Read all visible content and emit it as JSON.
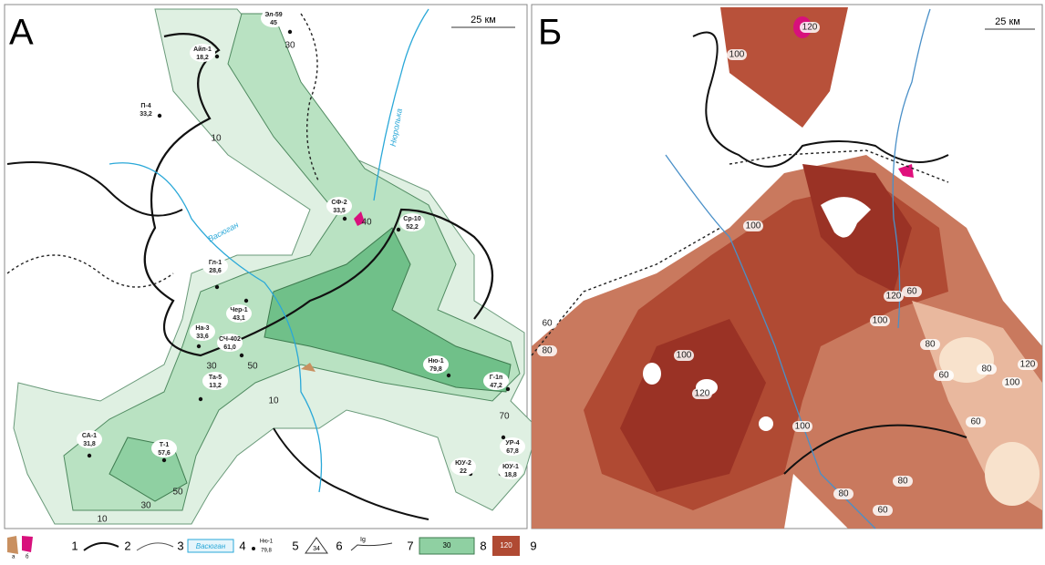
{
  "panel_a": {
    "letter": "А",
    "scale": "25 км",
    "rivers": [
      "Васюган",
      "Нюролька"
    ],
    "wells": [
      {
        "name": "Эл-59",
        "value": "45"
      },
      {
        "name": "Айп-1",
        "value": "18,2"
      },
      {
        "name": "П-4",
        "value": "33,2"
      },
      {
        "name": "СФ-2",
        "value": "33,5"
      },
      {
        "name": "Ср-10",
        "value": "52,2"
      },
      {
        "name": "Гл-1",
        "value": "28,6"
      },
      {
        "name": "Чер-1",
        "value": "43,1"
      },
      {
        "name": "На-3",
        "value": "33,6"
      },
      {
        "name": "СЧ-402",
        "value": "61,0"
      },
      {
        "name": "Ню-1",
        "value": "79,8"
      },
      {
        "name": "Г-1п",
        "value": "47,2"
      },
      {
        "name": "Та-5",
        "value": "13,2"
      },
      {
        "name": "СА-1",
        "value": "31,8"
      },
      {
        "name": "Т-1",
        "value": "57,6"
      },
      {
        "name": "УР-4",
        "value": "67,8"
      },
      {
        "name": "ЮУ-2",
        "value": "22"
      },
      {
        "name": "ЮУ-1",
        "value": "18,8"
      }
    ],
    "contours": [
      "30",
      "10",
      "40",
      "50",
      "30",
      "70",
      "50",
      "30",
      "10",
      "10"
    ]
  },
  "panel_b": {
    "letter": "Б",
    "scale": "25 км",
    "contours": [
      "120",
      "100",
      "100",
      "120",
      "100",
      "80",
      "60",
      "80",
      "100",
      "120",
      "80",
      "60",
      "60",
      "80",
      "100",
      "120",
      "100",
      "80",
      "60",
      "60"
    ]
  },
  "legend": {
    "items": [
      "1",
      "2",
      "3",
      "4",
      "5",
      "6",
      "7",
      "8",
      "9"
    ],
    "sub": [
      "а",
      "б"
    ],
    "river": "Васюган",
    "well": {
      "name": "Ню-1",
      "value": "79,8"
    },
    "triangle": "34",
    "line": "Ig",
    "isoline": "30",
    "iso_b": "120"
  }
}
